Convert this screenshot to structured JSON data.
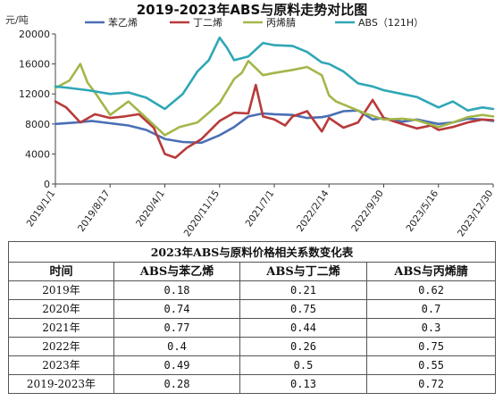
{
  "chart_data": {
    "type": "line",
    "title": "2019-2023年ABS与原料走势对比图",
    "ylabel": "元/吨",
    "ylim": [
      0,
      20000
    ],
    "yticks": [
      0,
      4000,
      8000,
      12000,
      16000,
      20000
    ],
    "xlim": [
      "2019-01-01",
      "2023-12-30"
    ],
    "xticks": [
      "2019/1/1",
      "2019/8/17",
      "2020/4/1",
      "2020/11/15",
      "2021/7/1",
      "2022/2/14",
      "2022/9/30",
      "2023/5/16",
      "2023/12/30"
    ],
    "legend_position": "top",
    "grid": false,
    "series": [
      {
        "name": "苯乙烯",
        "color": "#4a6fb5",
        "x": [
          "2019-01-01",
          "2019-04-01",
          "2019-06-01",
          "2019-08-17",
          "2019-11-01",
          "2020-01-15",
          "2020-04-01",
          "2020-06-15",
          "2020-09-01",
          "2020-11-15",
          "2021-01-15",
          "2021-03-15",
          "2021-05-15",
          "2021-07-01",
          "2021-09-15",
          "2021-11-15",
          "2022-01-15",
          "2022-02-14",
          "2022-04-15",
          "2022-06-15",
          "2022-08-15",
          "2022-09-30",
          "2022-12-15",
          "2023-02-15",
          "2023-05-16",
          "2023-07-15",
          "2023-09-15",
          "2023-11-15",
          "2023-12-30"
        ],
        "values": [
          8000,
          8200,
          8400,
          8100,
          7800,
          7200,
          6000,
          5600,
          5500,
          6500,
          7600,
          9000,
          9400,
          9300,
          9200,
          8800,
          8900,
          9100,
          9700,
          9800,
          8600,
          8800,
          8300,
          8600,
          8000,
          8200,
          8700,
          8600,
          8400
        ]
      },
      {
        "name": "丁二烯",
        "color": "#b83a3a",
        "x": [
          "2019-01-01",
          "2019-02-15",
          "2019-04-15",
          "2019-06-15",
          "2019-08-17",
          "2019-10-15",
          "2019-12-15",
          "2020-02-15",
          "2020-04-01",
          "2020-05-15",
          "2020-07-01",
          "2020-09-01",
          "2020-11-15",
          "2021-01-15",
          "2021-03-15",
          "2021-04-15",
          "2021-05-15",
          "2021-07-01",
          "2021-08-15",
          "2021-09-15",
          "2021-11-15",
          "2022-01-15",
          "2022-02-14",
          "2022-04-15",
          "2022-06-15",
          "2022-08-15",
          "2022-09-30",
          "2022-12-15",
          "2023-02-15",
          "2023-04-15",
          "2023-05-16",
          "2023-07-15",
          "2023-09-15",
          "2023-11-15",
          "2023-12-30"
        ],
        "values": [
          11000,
          10200,
          8200,
          9300,
          8800,
          9000,
          9300,
          7500,
          4000,
          3500,
          4800,
          6000,
          8400,
          9500,
          9400,
          13200,
          9000,
          8600,
          7800,
          9000,
          9700,
          7000,
          8800,
          7500,
          8200,
          11200,
          8800,
          8000,
          7400,
          7800,
          7200,
          7600,
          8200,
          8600,
          8500
        ]
      },
      {
        "name": "丙烯腈",
        "color": "#a3b74a",
        "x": [
          "2019-01-01",
          "2019-03-01",
          "2019-04-15",
          "2019-05-15",
          "2019-06-15",
          "2019-08-17",
          "2019-11-01",
          "2020-01-15",
          "2020-04-01",
          "2020-06-01",
          "2020-08-15",
          "2020-10-01",
          "2020-11-15",
          "2021-01-15",
          "2021-02-15",
          "2021-03-15",
          "2021-05-15",
          "2021-07-01",
          "2021-09-15",
          "2021-11-15",
          "2022-01-15",
          "2022-02-14",
          "2022-03-15",
          "2022-05-15",
          "2022-07-15",
          "2022-09-30",
          "2022-12-15",
          "2023-02-15",
          "2023-05-16",
          "2023-07-15",
          "2023-09-15",
          "2023-11-15",
          "2023-12-30"
        ],
        "values": [
          12800,
          13800,
          16000,
          13500,
          12200,
          9200,
          11000,
          8800,
          6500,
          7600,
          8200,
          9500,
          10800,
          14000,
          14800,
          16400,
          14500,
          14800,
          15200,
          15600,
          14500,
          11800,
          11000,
          10200,
          9400,
          8600,
          8700,
          8500,
          7600,
          8200,
          8900,
          9200,
          9000
        ]
      },
      {
        "name": "ABS（121H）",
        "color": "#2fa7b6",
        "x": [
          "2019-01-01",
          "2019-03-01",
          "2019-05-15",
          "2019-08-17",
          "2019-11-01",
          "2020-01-15",
          "2020-04-01",
          "2020-06-15",
          "2020-08-15",
          "2020-10-01",
          "2020-11-15",
          "2020-12-15",
          "2021-01-15",
          "2021-03-15",
          "2021-05-15",
          "2021-07-01",
          "2021-09-15",
          "2021-11-15",
          "2022-01-15",
          "2022-02-14",
          "2022-04-15",
          "2022-06-15",
          "2022-08-15",
          "2022-09-30",
          "2022-12-15",
          "2023-02-15",
          "2023-05-16",
          "2023-07-15",
          "2023-09-15",
          "2023-11-15",
          "2023-12-30"
        ],
        "values": [
          13000,
          12800,
          12500,
          12000,
          12200,
          11500,
          10000,
          12000,
          15000,
          16500,
          19500,
          18200,
          16500,
          17000,
          18800,
          18500,
          18400,
          17600,
          16200,
          16000,
          15000,
          13400,
          13000,
          12500,
          12000,
          11600,
          10200,
          11000,
          9800,
          10200,
          10000
        ]
      }
    ]
  },
  "table": {
    "title": "2023年ABS与原料价格相关系数变化表",
    "headers": [
      "时间",
      "ABS与苯乙烯",
      "ABS与丁二烯",
      "ABS与丙烯腈"
    ],
    "rows": [
      [
        "2019年",
        "0.18",
        "0.21",
        "0.62"
      ],
      [
        "2020年",
        "0.74",
        "0.75",
        "0.7"
      ],
      [
        "2021年",
        "0.77",
        "0.44",
        "0.3"
      ],
      [
        "2022年",
        "0.4",
        "0.26",
        "0.75"
      ],
      [
        "2023年",
        "0.49",
        "0.5",
        "0.55"
      ],
      [
        "2019-2023年",
        "0.28",
        "0.13",
        "0.72"
      ]
    ]
  }
}
